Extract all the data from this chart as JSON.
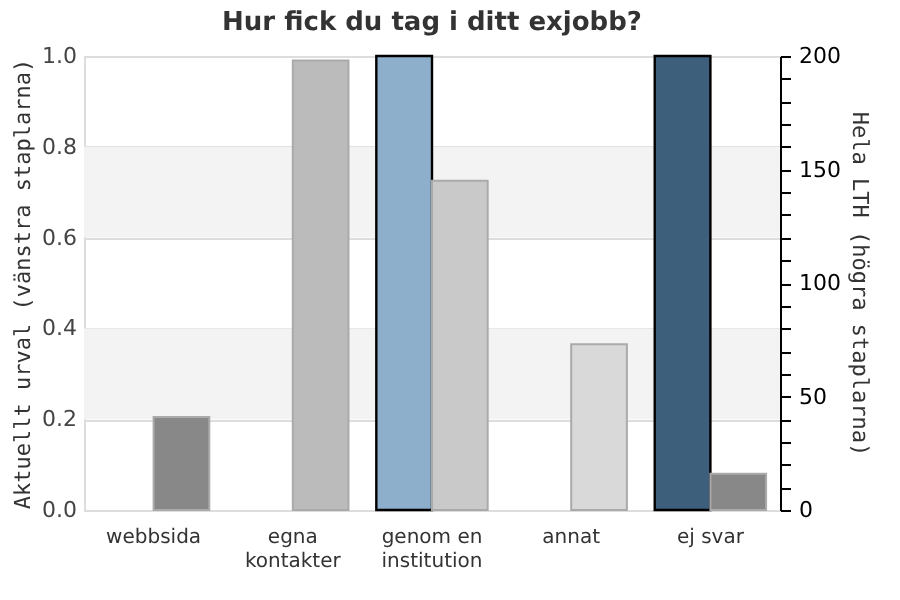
{
  "chart_data": {
    "type": "bar",
    "title": "Hur fick du tag i ditt exjobb?",
    "categories": [
      "webbsida",
      "egna kontakter",
      "genom en institution",
      "annat",
      "ej svar"
    ],
    "series": [
      {
        "axis": "y",
        "colors": [
          "#8eafcb",
          "#8eafcb",
          "#8eafcb",
          "#8eafcb",
          "#3e5f7b"
        ],
        "values": [
          0,
          0,
          1,
          0,
          1
        ]
      },
      {
        "axis": "y2",
        "colors": [
          "#888888",
          "#bbbbbb",
          "#c9c9c9",
          "#d9d9d9",
          "#888888"
        ],
        "values": [
          41,
          198,
          145,
          73,
          16
        ]
      }
    ],
    "ylabel": "Aktuellt urval (vänstra staplarna)",
    "y2label": "Hela LTH (högra staplarna)",
    "ylim": [
      0,
      1
    ],
    "yticks": [
      {
        "value": 0,
        "label": "0.0"
      },
      {
        "value": 0.2,
        "label": "0.2"
      },
      {
        "value": 0.4,
        "label": "0.4"
      },
      {
        "value": 0.6,
        "label": "0.6"
      },
      {
        "value": 0.8,
        "label": "0.8"
      },
      {
        "value": 1,
        "label": "1.0"
      }
    ],
    "y2lim": [
      0,
      200
    ],
    "y2ticks": [
      0,
      {
        "value": 10,
        "label": null
      },
      {
        "value": 20,
        "label": null
      },
      {
        "value": 30,
        "label": null
      },
      {
        "value": 40,
        "label": null
      },
      50,
      {
        "value": 60,
        "label": null
      },
      {
        "value": 70,
        "label": null
      },
      {
        "value": 80,
        "label": null
      },
      {
        "value": 90,
        "label": null
      },
      100,
      {
        "value": 110,
        "label": null
      },
      {
        "value": 120,
        "label": null
      },
      {
        "value": 130,
        "label": null
      },
      {
        "value": 140,
        "label": null
      },
      150,
      {
        "value": 160,
        "label": null
      },
      {
        "value": 170,
        "label": null
      },
      {
        "value": 180,
        "label": null
      },
      {
        "value": 190,
        "label": null
      },
      200
    ],
    "bands": [
      {
        "axis": "y",
        "from": 0.2,
        "to": 0.4,
        "color": "#f3f3f3"
      },
      {
        "axis": "y",
        "from": 0.6,
        "to": 0.8,
        "color": "#f3f3f3"
      }
    ],
    "grid": "y"
  }
}
